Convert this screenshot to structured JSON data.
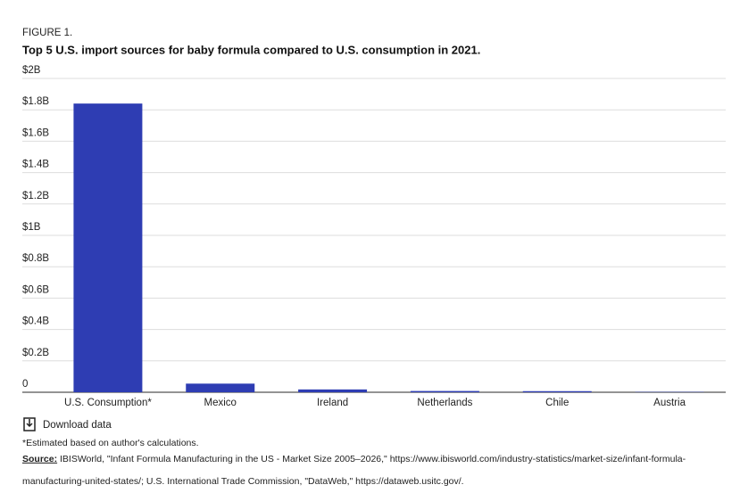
{
  "figure_label": "FIGURE 1.",
  "chart_data": {
    "type": "bar",
    "title": "Top 5 U.S. import sources for baby formula compared to U.S. consumption in 2021.",
    "categories": [
      "U.S. Consumption*",
      "Mexico",
      "Ireland",
      "Netherlands",
      "Chile",
      "Austria"
    ],
    "values": [
      1840000000,
      55000000,
      18000000,
      8000000,
      7000000,
      2000000
    ],
    "color": "#2e3db3",
    "ylim": [
      0,
      2000000000
    ],
    "yticks": [
      0,
      {
        "value": 200000000,
        "label": "$0.2B"
      },
      {
        "value": 400000000,
        "label": "$0.4B"
      },
      {
        "value": 600000000,
        "label": "$0.6B"
      },
      {
        "value": 800000000,
        "label": "$0.8B"
      },
      {
        "value": 1000000000,
        "label": "$1B"
      },
      {
        "value": 1200000000,
        "label": "$1.2B"
      },
      {
        "value": 1400000000,
        "label": "$1.4B"
      },
      {
        "value": 1600000000,
        "label": "$1.6B"
      },
      {
        "value": 1800000000,
        "label": "$1.8B"
      },
      {
        "value": 2000000000,
        "label": "$2B"
      }
    ],
    "grid": true
  },
  "download_label": "Download data",
  "footnote": "*Estimated based on author's calculations.",
  "source_label": "Source:",
  "source_lines": [
    "IBISWorld, \"Infant Formula Manufacturing in the US - Market Size 2005–2026,\" https://www.ibisworld.com/industry-statistics/market-size/infant-formula-",
    "manufacturing-united-states/; U.S. International Trade Commission, \"DataWeb,\" https://dataweb.usitc.gov/."
  ]
}
